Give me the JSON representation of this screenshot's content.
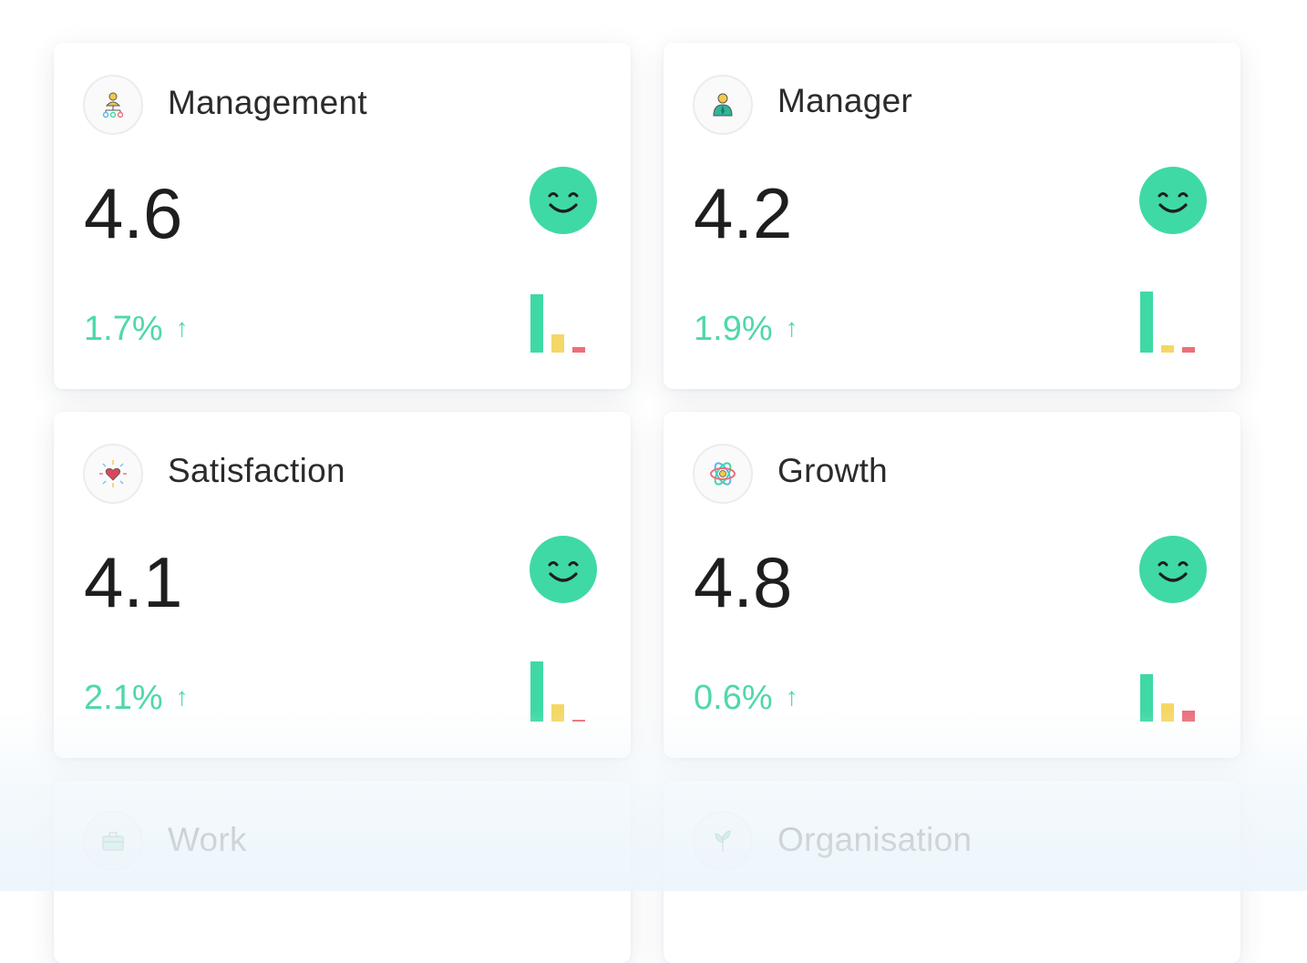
{
  "colors": {
    "positive": "#4ed8aa",
    "smiley": "#3fd9a5",
    "bar_green": "#3fd9a5",
    "bar_yellow": "#f5d766",
    "bar_red": "#ea6f7a"
  },
  "cards": [
    {
      "title": "Management",
      "icon": "management-network-icon",
      "score": "4.6",
      "change": "1.7%",
      "trend": "up-arrow",
      "sentiment": "happy",
      "distribution": {
        "positive": 0.84,
        "neutral": 0.26,
        "negative": 0.08
      }
    },
    {
      "title": "Manager",
      "icon": "manager-person-icon",
      "score": "4.2",
      "change": "1.9%",
      "trend": "up-arrow",
      "sentiment": "happy",
      "distribution": {
        "positive": 0.88,
        "neutral": 0.11,
        "negative": 0.08
      }
    },
    {
      "title": "Satisfaction",
      "icon": "satisfaction-heart-icon",
      "score": "4.1",
      "change": "2.1%",
      "trend": "up-arrow",
      "sentiment": "happy",
      "distribution": {
        "positive": 0.87,
        "neutral": 0.25,
        "negative": 0.03
      }
    },
    {
      "title": "Growth",
      "icon": "growth-atom-icon",
      "score": "4.8",
      "change": "0.6%",
      "trend": "up-arrow",
      "sentiment": "happy",
      "distribution": {
        "positive": 0.68,
        "neutral": 0.26,
        "negative": 0.16
      }
    },
    {
      "title": "Work",
      "icon": "work-briefcase-icon"
    },
    {
      "title": "Organisation",
      "icon": "organisation-plant-icon"
    }
  ],
  "trend_symbol": "↑"
}
